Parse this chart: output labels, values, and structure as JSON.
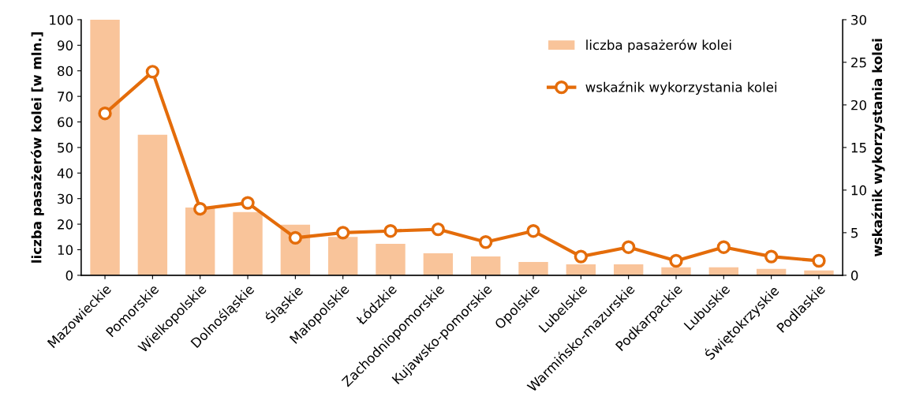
{
  "chart_data": {
    "type": "bar",
    "ylabel": "liczba pasażerów kolei [w mln.]",
    "y2label": "wskaźnik wykorzystania kolei",
    "categories": [
      "Mazowieckie",
      "Pomorskie",
      "Wielkopolskie",
      "Dolnośląskie",
      "Śląskie",
      "Małopolskie",
      "Łódzkie",
      "Zachodniopomorskie",
      "Kujawsko-pomorskie",
      "Opolskie",
      "Lubelskie",
      "Warmińsko-mazurskie",
      "Podkarpackie",
      "Lubuskie",
      "Świętokrzyskie",
      "Podlaskie"
    ],
    "series": [
      {
        "name": "liczba pasażerów kolei",
        "color": "#f9c49a",
        "values": [
          100,
          55,
          26.5,
          24.7,
          19.8,
          15,
          12.3,
          8.6,
          7.4,
          5.2,
          4.3,
          4.3,
          3.1,
          3.1,
          2.5,
          1.9
        ]
      },
      {
        "name": "wskaźnik wykorzystania kolei",
        "type": "line",
        "axis": "y2",
        "color": "#e46c0a",
        "marker": "circle",
        "values": [
          19,
          23.9,
          7.8,
          8.5,
          4.4,
          5.0,
          5.2,
          5.4,
          3.9,
          5.2,
          2.2,
          3.3,
          1.7,
          3.3,
          2.2,
          1.7
        ]
      }
    ],
    "ylim": [
      0,
      100
    ],
    "yticks": [
      0,
      10,
      20,
      30,
      40,
      50,
      60,
      70,
      80,
      90,
      100
    ],
    "y2lim": [
      0,
      30
    ],
    "y2ticks": [
      0,
      5,
      10,
      15,
      20,
      25,
      30
    ],
    "grid": false,
    "legend": "top right"
  }
}
